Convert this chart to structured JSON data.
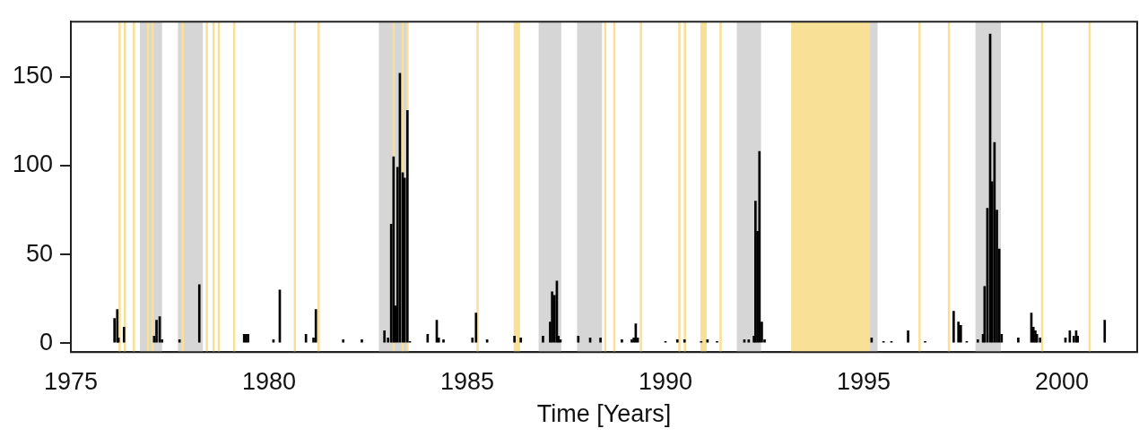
{
  "chart_data": {
    "type": "bar",
    "xlabel": "Time [Years]",
    "x": [
      1976.1,
      1976.17,
      1976.2,
      1976.34,
      1977.1,
      1977.16,
      1977.24,
      1977.3,
      1977.74,
      1978.24,
      1979.37,
      1979.42,
      1979.47,
      1980.11,
      1980.27,
      1980.93,
      1981.12,
      1981.18,
      1981.87,
      1982.34,
      1982.91,
      1983.0,
      1983.08,
      1983.14,
      1983.19,
      1983.24,
      1983.3,
      1983.37,
      1983.42,
      1983.49,
      1983.55,
      1984.0,
      1984.23,
      1984.28,
      1984.4,
      1985.13,
      1985.22,
      1985.5,
      1986.19,
      1986.35,
      1986.91,
      1987.09,
      1987.14,
      1987.2,
      1987.26,
      1987.3,
      1987.35,
      1987.8,
      1988.1,
      1988.36,
      1988.9,
      1989.15,
      1989.2,
      1989.25,
      1989.3,
      1990.0,
      1990.3,
      1990.48,
      1990.9,
      1991.06,
      1991.3,
      1991.99,
      1992.1,
      1992.23,
      1992.27,
      1992.32,
      1992.37,
      1992.43,
      1992.5,
      1995.2,
      1995.5,
      1995.7,
      1996.12,
      1996.55,
      1997.27,
      1997.39,
      1997.45,
      1997.6,
      1997.88,
      1998.01,
      1998.05,
      1998.12,
      1998.19,
      1998.24,
      1998.3,
      1998.36,
      1998.42,
      1998.48,
      1998.9,
      1999.23,
      1999.28,
      1999.33,
      1999.37,
      1999.45,
      2000.09,
      2000.2,
      2000.3,
      2000.36,
      2000.4,
      2001.08
    ],
    "series": [
      {
        "color": "#000000",
        "values": [
          14,
          19,
          3,
          9,
          4,
          13,
          15,
          2,
          2,
          33,
          5,
          5,
          5,
          2,
          30,
          5,
          3,
          19,
          2,
          2,
          7,
          3,
          67,
          105,
          21,
          99,
          152,
          96,
          93,
          131,
          1,
          5,
          13,
          3,
          2,
          3,
          17,
          2,
          4,
          3,
          4,
          12,
          29,
          27,
          35,
          4,
          2,
          4,
          3,
          3,
          2,
          2,
          3,
          11,
          3,
          1,
          2,
          2,
          1,
          2,
          1,
          2,
          2,
          4,
          80,
          63,
          108,
          12,
          2,
          3,
          1,
          1,
          7,
          1,
          18,
          12,
          10,
          1,
          2,
          5,
          32,
          76,
          174,
          91,
          113,
          75,
          53,
          5,
          3,
          17,
          9,
          7,
          5,
          3,
          3,
          7,
          4,
          7,
          4,
          13
        ]
      }
    ],
    "xlim": [
      1975,
      2001.9
    ],
    "xticks": [
      1975,
      1980,
      1985,
      1990,
      1995,
      2000
    ],
    "ylim": [
      -5,
      181
    ],
    "yticks": [
      0,
      50,
      100,
      150
    ],
    "grid": false,
    "legend": false,
    "bands": [
      {
        "axis": "x",
        "from": 1976.74,
        "to": 1977.3,
        "color": "#d6d6d6"
      },
      {
        "axis": "x",
        "from": 1977.7,
        "to": 1978.33,
        "color": "#d6d6d6"
      },
      {
        "axis": "x",
        "from": 1982.77,
        "to": 1983.51,
        "color": "#d6d6d6"
      },
      {
        "axis": "x",
        "from": 1986.8,
        "to": 1987.37,
        "color": "#d6d6d6"
      },
      {
        "axis": "x",
        "from": 1987.77,
        "to": 1988.4,
        "color": "#d6d6d6"
      },
      {
        "axis": "x",
        "from": 1991.8,
        "to": 1992.41,
        "color": "#d6d6d6"
      },
      {
        "axis": "x",
        "from": 1994.81,
        "to": 1995.35,
        "color": "#d6d6d6"
      },
      {
        "axis": "x",
        "from": 1997.82,
        "to": 1998.46,
        "color": "#d6d6d6"
      },
      {
        "axis": "x",
        "from": 1986.17,
        "to": 1986.33,
        "color": "#f9e097"
      },
      {
        "axis": "x",
        "from": 1990.88,
        "to": 1991.04,
        "color": "#f9e097"
      },
      {
        "axis": "x",
        "from": 1993.17,
        "to": 1995.16,
        "color": "#f9e097"
      }
    ],
    "ref_lines": [
      {
        "axis": "x",
        "value": 1976.23,
        "color": "#f9e097"
      },
      {
        "axis": "x",
        "value": 1976.36,
        "color": "#f9e097"
      },
      {
        "axis": "x",
        "value": 1976.59,
        "color": "#f9e097"
      },
      {
        "axis": "x",
        "value": 1976.95,
        "color": "#f9e097"
      },
      {
        "axis": "x",
        "value": 1977.06,
        "color": "#f9e097"
      },
      {
        "axis": "x",
        "value": 1977.82,
        "color": "#f9e097"
      },
      {
        "axis": "x",
        "value": 1978.43,
        "color": "#f9e097"
      },
      {
        "axis": "x",
        "value": 1978.6,
        "color": "#f9e097"
      },
      {
        "axis": "x",
        "value": 1978.73,
        "color": "#f9e097"
      },
      {
        "axis": "x",
        "value": 1979.12,
        "color": "#f9e097"
      },
      {
        "axis": "x",
        "value": 1980.65,
        "color": "#f9e097"
      },
      {
        "axis": "x",
        "value": 1981.25,
        "color": "#f9e097"
      },
      {
        "axis": "x",
        "value": 1983.14,
        "color": "#f9e097"
      },
      {
        "axis": "x",
        "value": 1983.37,
        "color": "#f9e097"
      },
      {
        "axis": "x",
        "value": 1983.49,
        "color": "#f9e097"
      },
      {
        "axis": "x",
        "value": 1985.26,
        "color": "#f9e097"
      },
      {
        "axis": "x",
        "value": 1988.48,
        "color": "#f9e097"
      },
      {
        "axis": "x",
        "value": 1988.71,
        "color": "#f9e097"
      },
      {
        "axis": "x",
        "value": 1989.38,
        "color": "#f9e097"
      },
      {
        "axis": "x",
        "value": 1990.35,
        "color": "#f9e097"
      },
      {
        "axis": "x",
        "value": 1990.49,
        "color": "#f9e097"
      },
      {
        "axis": "x",
        "value": 1991.39,
        "color": "#f9e097"
      },
      {
        "axis": "x",
        "value": 1996.41,
        "color": "#f9e097"
      },
      {
        "axis": "x",
        "value": 1997.15,
        "color": "#f9e097"
      },
      {
        "axis": "x",
        "value": 1999.5,
        "color": "#f9e097"
      },
      {
        "axis": "x",
        "value": 2000.7,
        "color": "#f9e097"
      }
    ]
  }
}
